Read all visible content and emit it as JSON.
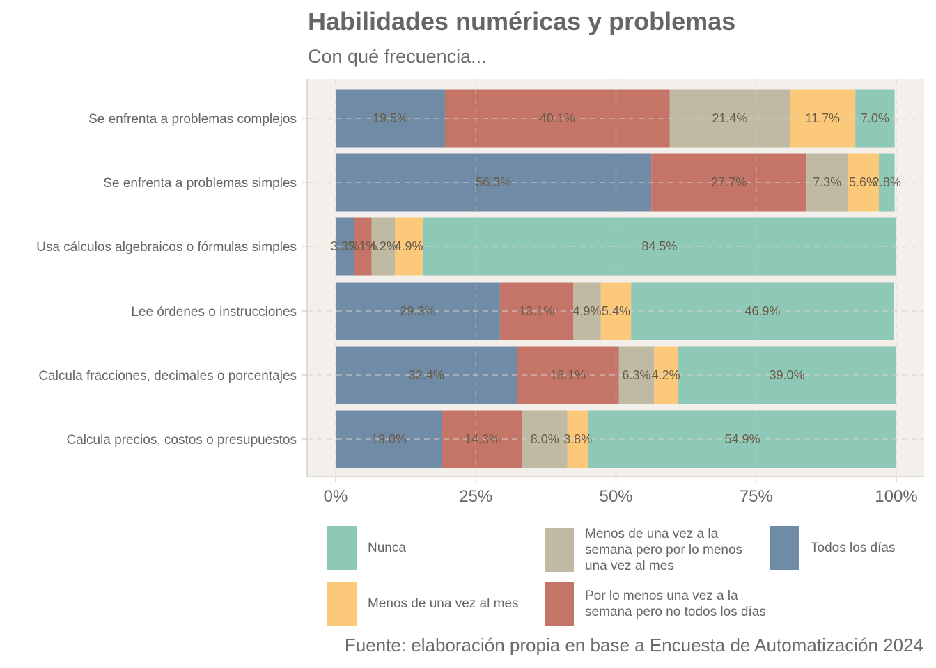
{
  "title": "Habilidades numéricas y problemas",
  "subtitle": "Con qué frecuencia...",
  "caption": "Fuente: elaboración propia en base a Encuesta de Automatización 2024",
  "colors": {
    "panel_bg": "#f3efea",
    "gridline": "#d6d2cd",
    "label_text": "#6b5a45"
  },
  "chart_data": {
    "type": "bar",
    "orientation": "horizontal",
    "stacked": true,
    "categories": [
      "Se enfrenta a problemas complejos",
      "Se enfrenta a problemas simples",
      "Usa cálculos algebraicos o fórmulas simples",
      "Lee órdenes o instrucciones",
      "Calcula fracciones, decimales o porcentajes",
      "Calcula precios, costos o presupuestos"
    ],
    "series": [
      {
        "name": "Todos los días",
        "color": "#6f8ba5",
        "values": [
          19.5,
          56.3,
          3.3,
          29.3,
          32.4,
          19.0
        ],
        "labels": [
          "19.5%",
          "56.3%",
          "3.3%",
          "29.3%",
          "32.4%",
          "19.0%"
        ]
      },
      {
        "name": "Por lo menos una vez a la semana pero no todos los días",
        "color": "#c47568",
        "values": [
          40.1,
          27.7,
          3.1,
          13.1,
          18.1,
          14.3
        ],
        "labels": [
          "40.1%",
          "27.7%",
          "3.1%",
          "13.1%",
          "18.1%",
          "14.3%"
        ]
      },
      {
        "name": "Menos de una vez a la semana pero por lo menos una vez al mes",
        "color": "#c0b9a3",
        "values": [
          21.4,
          7.3,
          4.2,
          4.9,
          6.3,
          8.0
        ],
        "labels": [
          "21.4%",
          "7.3%",
          "4.2%",
          "4.9%",
          "6.3%",
          "8.0%"
        ]
      },
      {
        "name": "Menos de una vez al mes",
        "color": "#fcc97a",
        "values": [
          11.7,
          5.6,
          4.9,
          5.4,
          4.2,
          3.8
        ],
        "labels": [
          "11.7%",
          "5.6%",
          "4.9%",
          "5.4%",
          "4.2%",
          "3.8%"
        ]
      },
      {
        "name": "Nunca",
        "color": "#8ec9b8",
        "values": [
          7.0,
          2.8,
          84.5,
          46.9,
          39.0,
          54.9
        ],
        "labels": [
          "7.0%",
          "2.8%",
          "84.5%",
          "46.9%",
          "39.0%",
          "54.9%"
        ]
      }
    ],
    "xlim": [
      0,
      100
    ],
    "xticks": [
      "0%",
      "25%",
      "50%",
      "75%",
      "100%"
    ],
    "xtick_values": [
      0,
      25,
      50,
      75,
      100
    ],
    "xlabel": "",
    "ylabel": "",
    "grid": true,
    "legend_position": "bottom"
  },
  "legend": [
    {
      "label": "Nunca",
      "color": "#8ec9b8"
    },
    {
      "label": "Menos de una vez a la semana pero por lo menos una vez al mes",
      "color": "#c0b9a3"
    },
    {
      "label": "Todos los días",
      "color": "#6f8ba5"
    },
    {
      "label": "Menos de una vez al mes",
      "color": "#fcc97a"
    },
    {
      "label": "Por lo menos una vez a la semana pero no todos los días",
      "color": "#c47568"
    }
  ]
}
